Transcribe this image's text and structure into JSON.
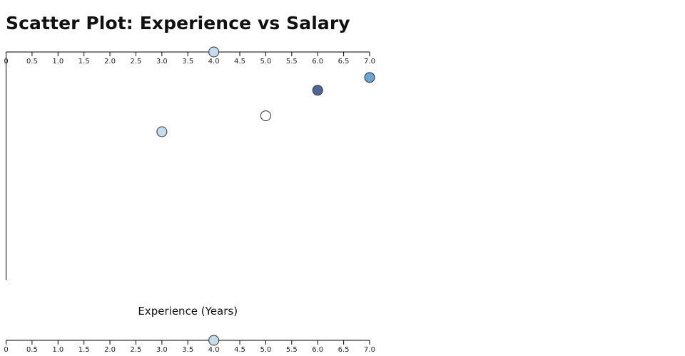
{
  "page": {
    "title": "Scatter Plot: Experience vs Salary"
  },
  "chart_data": {
    "type": "scatter",
    "title": "Scatter Plot: Experience vs Salary",
    "xlabel": "Experience (Years)",
    "ylabel": "",
    "xlim": [
      0,
      7
    ],
    "x_ticks": [
      "0",
      "0.5",
      "1.0",
      "1.5",
      "2.0",
      "2.5",
      "3.0",
      "3.5",
      "4.0",
      "4.5",
      "5.0",
      "5.5",
      "6.0",
      "6.5",
      "7.0"
    ],
    "grid": false,
    "legend": "none",
    "series": [
      {
        "points": [
          {
            "x": 3,
            "y": 0.35,
            "color": "#c6dcec"
          },
          {
            "x": 4,
            "y": 0.0,
            "color": "#c6dcec"
          },
          {
            "x": 5,
            "y": 0.28,
            "color": "#ffffff"
          },
          {
            "x": 6,
            "y": 0.168,
            "color": "#4f6797"
          },
          {
            "x": 7,
            "y": 0.112,
            "color": "#6aa6d3"
          }
        ]
      }
    ]
  }
}
